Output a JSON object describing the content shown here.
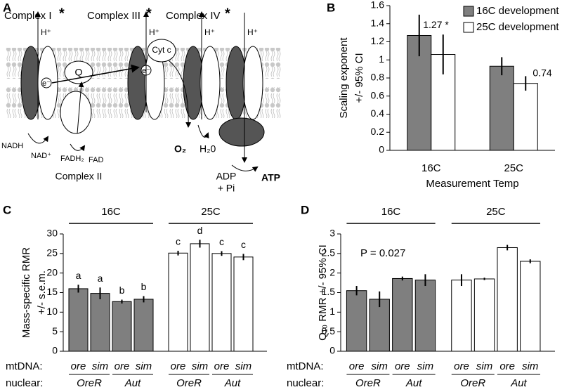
{
  "diagram": {
    "panel_label": "A",
    "complex_labels": [
      "Complex I",
      "Complex III",
      "Complex IV"
    ],
    "asterisk": "*",
    "proton": "H⁺",
    "electron": "e⁻",
    "q": "Q",
    "cyt_c": "Cyt c",
    "nadh": "NADH",
    "nad": "NAD⁺",
    "fadh2": "FADH₂",
    "fad": "FAD",
    "complex_ii": "Complex II",
    "o2": "O₂",
    "water": "H₂0",
    "adp": "ADP",
    "pi": "+ Pi",
    "atp": "ATP"
  },
  "chart_data": [
    {
      "type": "bar",
      "panel_label": "B",
      "y_label": [
        "Scaling exponent",
        "+/- 95% CI"
      ],
      "x_label": "Measurement Temp",
      "categories": [
        "16C",
        "25C"
      ],
      "ylim": [
        0,
        1.6
      ],
      "yticks": [
        0,
        0.2,
        0.4,
        0.6,
        0.8,
        1,
        1.2,
        1.4,
        1.6
      ],
      "legend": "top-right",
      "series": [
        {
          "name": "16C development",
          "color": "#7f7f7f",
          "values": [
            1.27,
            0.93
          ],
          "errors": [
            0.23,
            0.1
          ],
          "value_labels": [
            "1.27 *",
            null
          ]
        },
        {
          "name": "25C development",
          "color": "#ffffff",
          "values": [
            1.06,
            0.74
          ],
          "errors": [
            0.22,
            0.08
          ],
          "value_labels": [
            null,
            "0.74"
          ]
        }
      ]
    },
    {
      "type": "grouped-bar",
      "panel_label": "C",
      "y_label": [
        "Mass-specific RMR",
        "+/- s.e.m."
      ],
      "ylim": [
        0,
        30
      ],
      "yticks": [
        0,
        5,
        10,
        15,
        20,
        25,
        30
      ],
      "groups": [
        {
          "label": "16C",
          "color": "#7f7f7f"
        },
        {
          "label": "25C",
          "color": "#ffffff"
        }
      ],
      "row_labels": [
        "mtDNA:",
        "nuclear:"
      ],
      "categories": [
        "ore",
        "sim",
        "ore",
        "sim",
        "ore",
        "sim",
        "ore",
        "sim"
      ],
      "nuclear": [
        "OreR",
        "Aut",
        "OreR",
        "Aut"
      ],
      "values": [
        16.0,
        14.8,
        12.7,
        13.3,
        25.1,
        27.5,
        25.0,
        24.1
      ],
      "errors": [
        1.0,
        1.5,
        0.5,
        0.8,
        0.6,
        1.0,
        0.6,
        0.8
      ],
      "letters": [
        "a",
        "a",
        "b",
        "b",
        "c",
        "d",
        "c",
        "c"
      ]
    },
    {
      "type": "grouped-bar",
      "panel_label": "D",
      "y_label": [
        "Q₁₀ RMR +/- 95% CI"
      ],
      "annotation": "P = 0.027",
      "ylim": [
        0,
        3
      ],
      "yticks": [
        0,
        0.5,
        1,
        1.5,
        2,
        2.5,
        3
      ],
      "groups": [
        {
          "label": "16C",
          "color": "#7f7f7f"
        },
        {
          "label": "25C",
          "color": "#ffffff"
        }
      ],
      "row_labels": [
        "mtDNA:",
        "nuclear:"
      ],
      "categories": [
        "ore",
        "sim",
        "ore",
        "sim",
        "ore",
        "sim",
        "ore",
        "sim"
      ],
      "nuclear": [
        "OreR",
        "Aut",
        "OreR",
        "Aut"
      ],
      "values": [
        1.55,
        1.33,
        1.86,
        1.82,
        1.82,
        1.85,
        2.65,
        2.3
      ],
      "errors": [
        0.12,
        0.2,
        0.05,
        0.15,
        0.15,
        0.03,
        0.07,
        0.05
      ]
    }
  ]
}
